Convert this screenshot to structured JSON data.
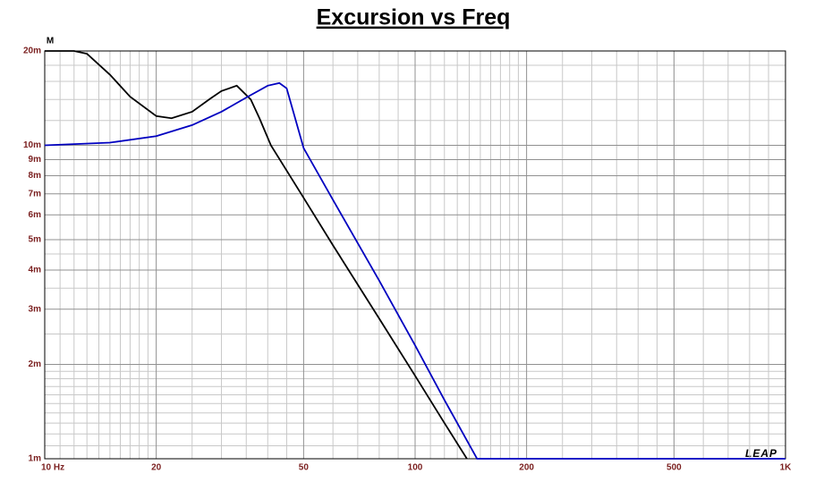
{
  "chart_data": {
    "type": "line",
    "title": "Excursion vs Freq",
    "y_unit": "M",
    "watermark": "LEAP",
    "log_x": true,
    "log_y": true,
    "grid": true,
    "xlim": [
      10,
      1000
    ],
    "ylim": [
      0.001,
      0.02
    ],
    "xticks": [
      {
        "value": 10,
        "label": "10  Hz"
      },
      20,
      50,
      100,
      200,
      500,
      {
        "value": 1000,
        "label": "1K"
      }
    ],
    "yticks": [
      {
        "value": 0.001,
        "label": "1m"
      },
      {
        "value": 0.002,
        "label": "2m"
      },
      {
        "value": 0.003,
        "label": "3m"
      },
      {
        "value": 0.004,
        "label": "4m"
      },
      {
        "value": 0.005,
        "label": "5m"
      },
      {
        "value": 0.006,
        "label": "6m"
      },
      {
        "value": 0.007,
        "label": "7m"
      },
      {
        "value": 0.008,
        "label": "8m"
      },
      {
        "value": 0.009,
        "label": "9m"
      },
      {
        "value": 0.01,
        "label": "10m"
      },
      {
        "value": 0.02,
        "label": "20m"
      }
    ],
    "xminor": [
      11,
      12,
      13,
      14,
      15,
      16,
      17,
      18,
      19,
      25,
      30,
      35,
      40,
      45,
      60,
      70,
      80,
      90,
      110,
      120,
      130,
      140,
      150,
      160,
      170,
      180,
      190,
      250,
      300,
      350,
      400,
      450,
      600,
      700,
      800,
      900
    ],
    "yminor": [
      0.0011,
      0.0012,
      0.0013,
      0.0014,
      0.0015,
      0.0016,
      0.0017,
      0.0018,
      0.0019,
      0.0025,
      0.0035,
      0.0045,
      0.012,
      0.014,
      0.016,
      0.018
    ],
    "series": [
      {
        "color": "#000000",
        "x": [
          10,
          12,
          13,
          15,
          17,
          20,
          22,
          25,
          28,
          30,
          33,
          36,
          38,
          40.8,
          50,
          60,
          80,
          100,
          120,
          138
        ],
        "values": [
          0.02,
          0.02,
          0.0196,
          0.0168,
          0.0143,
          0.0124,
          0.0122,
          0.0128,
          0.0141,
          0.0149,
          0.0155,
          0.014,
          0.0122,
          0.01,
          0.0068,
          0.0048,
          0.0028,
          0.00184,
          0.0013,
          0.001
        ]
      },
      {
        "color": "#0000c0",
        "x": [
          10,
          15,
          20,
          25,
          30,
          35,
          40,
          43,
          45,
          50,
          60,
          80,
          100,
          120,
          147,
          200,
          500,
          1000
        ],
        "values": [
          0.01,
          0.0102,
          0.0107,
          0.0116,
          0.0128,
          0.0142,
          0.0155,
          0.0158,
          0.0152,
          0.0098,
          0.0067,
          0.0037,
          0.0023,
          0.00154,
          0.001,
          0.001,
          0.001,
          0.001
        ]
      }
    ]
  }
}
